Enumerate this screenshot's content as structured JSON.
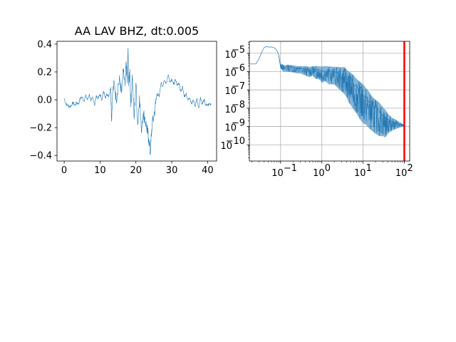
{
  "chart_data": [
    {
      "type": "line",
      "title": "AA LAV BHZ, dt:0.005",
      "xlabel": "",
      "ylabel": "",
      "xlim": [
        -2,
        42.5
      ],
      "ylim": [
        -0.44,
        0.42
      ],
      "xticks": [
        0,
        10,
        20,
        30,
        40
      ],
      "xtick_labels": [
        "0",
        "10",
        "20",
        "30",
        "40"
      ],
      "yticks": [
        -0.4,
        -0.2,
        0.0,
        0.2,
        0.4
      ],
      "ytick_labels": [
        "−0.4",
        "−0.2",
        "0.0",
        "0.2",
        "0.4"
      ],
      "grid": false,
      "series": [
        {
          "color": "#1f77b4",
          "x": [
            0,
            0.5,
            1,
            1.5,
            2,
            2.5,
            3,
            3.5,
            4,
            4.5,
            5,
            5.5,
            6,
            6.5,
            7,
            7.5,
            8,
            8.5,
            9,
            9.5,
            10,
            10.5,
            11,
            11.5,
            12,
            12.5,
            13,
            13.2,
            13.5,
            14,
            14.5,
            15,
            15.5,
            16,
            16.5,
            17,
            17.3,
            17.6,
            17.8,
            18,
            18.3,
            18.6,
            19,
            19.5,
            20,
            20.5,
            21,
            21.5,
            22,
            22.5,
            23,
            23.3,
            23.6,
            24,
            24.2,
            24.5,
            25,
            25.5,
            26,
            26.5,
            27,
            27.5,
            28,
            28.5,
            29,
            29.5,
            30,
            30.5,
            31,
            31.5,
            32,
            32.5,
            33,
            33.5,
            34,
            34.5,
            35,
            35.5,
            36,
            36.5,
            37,
            37.5,
            38,
            38.5,
            39,
            39.5,
            40,
            40.5,
            41
          ],
          "y": [
            0.01,
            -0.03,
            -0.04,
            -0.05,
            -0.04,
            -0.02,
            -0.04,
            -0.02,
            -0.03,
            0.01,
            0.02,
            -0.01,
            0.03,
            0.0,
            0.04,
            -0.01,
            0.02,
            -0.04,
            0.03,
            0.01,
            0.04,
            0.0,
            0.06,
            0.02,
            0.04,
            0.03,
            0.09,
            -0.15,
            0.05,
            0.12,
            0.0,
            0.1,
            0.14,
            0.05,
            0.2,
            0.1,
            0.27,
            0.12,
            0.37,
            0.1,
            0.22,
            -0.05,
            0.18,
            -0.14,
            0.12,
            -0.18,
            0.03,
            -0.22,
            -0.1,
            -0.13,
            -0.2,
            -0.24,
            -0.28,
            -0.39,
            -0.3,
            -0.18,
            -0.12,
            -0.03,
            0.05,
            0.02,
            0.12,
            0.1,
            0.14,
            0.12,
            0.18,
            0.13,
            0.15,
            0.11,
            0.14,
            0.11,
            0.12,
            0.06,
            0.1,
            0.02,
            0.05,
            0.0,
            0.01,
            -0.03,
            0.0,
            -0.05,
            0.01,
            -0.06,
            0.02,
            -0.03,
            0.0,
            -0.04,
            -0.04,
            -0.03,
            -0.03
          ]
        }
      ]
    },
    {
      "type": "line",
      "title": "",
      "xlabel": "",
      "ylabel": "",
      "xscale": "log",
      "yscale": "log",
      "xlim": [
        0.0175,
        135
      ],
      "ylim": [
        1.3e-11,
        4.5e-05
      ],
      "xticks": [
        0.1,
        1,
        10,
        100
      ],
      "xtick_labels": [
        [
          "10",
          "−1"
        ],
        [
          "10",
          "0"
        ],
        [
          "10",
          "1"
        ],
        [
          "10",
          "2"
        ]
      ],
      "yticks": [
        1e-10,
        1e-09,
        1e-08,
        1e-07,
        1e-06,
        1e-05
      ],
      "ytick_labels": [
        [
          "10",
          "−10"
        ],
        [
          "10",
          "−9"
        ],
        [
          "10",
          "−8"
        ],
        [
          "10",
          "−7"
        ],
        [
          "10",
          "−6"
        ],
        [
          "10",
          "−5"
        ]
      ],
      "grid": true,
      "vline": {
        "x": 100,
        "color": "#ff0000"
      },
      "series": [
        {
          "color": "#1f77b4",
          "x": [
            0.018,
            0.025,
            0.03,
            0.035,
            0.04,
            0.045,
            0.05,
            0.06,
            0.07,
            0.08,
            0.09,
            0.1,
            0.11,
            0.12,
            0.15,
            0.2,
            0.25,
            0.3,
            0.4,
            0.5,
            0.6,
            0.7,
            0.8,
            0.9,
            1.0,
            1.2,
            1.5,
            2.0,
            2.5,
            3.0,
            3.5,
            4.0,
            4.5,
            5.0,
            6.0,
            7.0,
            8.0,
            9.0,
            10,
            12,
            14,
            16,
            18,
            20,
            25,
            30,
            35,
            40,
            45,
            50,
            60,
            70,
            80,
            90,
            100
          ],
          "y": [
            2.6e-06,
            2.6e-06,
            5e-06,
            1.2e-05,
            2.1e-05,
            2.3e-05,
            2.2e-05,
            2.2e-05,
            2e-05,
            1.5e-05,
            8e-06,
            1.7e-06,
            2.2e-06,
            1.5e-06,
            2e-06,
            1.8e-06,
            1.4e-06,
            1.6e-06,
            1.3e-06,
            1.2e-06,
            1.6e-06,
            1e-06,
            1.4e-06,
            1.1e-06,
            1.2e-06,
            9e-07,
            1.1e-06,
            1e-06,
            8e-07,
            4e-07,
            1.4e-06,
            5e-07,
            2e-07,
            6e-07,
            1.5e-07,
            2e-07,
            8e-08,
            1.5e-07,
            5e-08,
            4e-08,
            2e-08,
            2.5e-08,
            1e-08,
            1.5e-08,
            6e-09,
            4e-09,
            3e-09,
            2.5e-09,
            2e-09,
            1.8e-09,
            1.5e-09,
            1.3e-09,
            1.2e-09,
            1.1e-09,
            1.1e-09
          ],
          "fill_top": [
            2.6e-06,
            2.6e-06,
            5e-06,
            1.2e-05,
            2.1e-05,
            2.3e-05,
            2.2e-05,
            2.2e-05,
            2e-05,
            1.5e-05,
            8e-06,
            2.5e-06,
            2.6e-06,
            2.2e-06,
            2.4e-06,
            2.2e-06,
            2e-06,
            2e-06,
            2e-06,
            1.8e-06,
            2e-06,
            2e-06,
            2e-06,
            1.9e-06,
            1.9e-06,
            2e-06,
            1.9e-06,
            1.8e-06,
            1.8e-06,
            1.7e-06,
            1.8e-06,
            1.3e-06,
            1e-06,
            9e-07,
            6e-07,
            4e-07,
            3e-07,
            2.5e-07,
            2e-07,
            1.2e-07,
            8e-08,
            5e-08,
            3.5e-08,
            3e-08,
            2e-08,
            1.2e-08,
            8e-09,
            5e-09,
            4e-09,
            3e-09,
            2.5e-09,
            2e-09,
            1.6e-09,
            1.4e-09,
            1.2e-09
          ],
          "fill_bottom": [
            2.6e-06,
            2.6e-06,
            5e-06,
            1.2e-05,
            2.1e-05,
            2.3e-05,
            2.2e-05,
            2.2e-05,
            2e-05,
            1.5e-05,
            8e-06,
            1.5e-06,
            1.2e-06,
            1e-06,
            1e-06,
            9e-07,
            8e-07,
            8e-07,
            6e-07,
            5e-07,
            6e-07,
            4e-07,
            4e-07,
            3.5e-07,
            2.5e-07,
            3e-07,
            2e-07,
            2e-07,
            1.2e-07,
            8e-08,
            6e-08,
            4e-08,
            2e-08,
            1.5e-08,
            8e-09,
            5e-09,
            3e-09,
            2e-09,
            1.5e-09,
            1.2e-09,
            8e-10,
            6e-10,
            5e-10,
            4e-10,
            3e-10,
            3e-10,
            2.5e-10,
            4e-10,
            5e-10,
            6e-10,
            7e-10,
            8e-10,
            9e-10,
            1e-09,
            1e-09
          ]
        }
      ]
    }
  ]
}
